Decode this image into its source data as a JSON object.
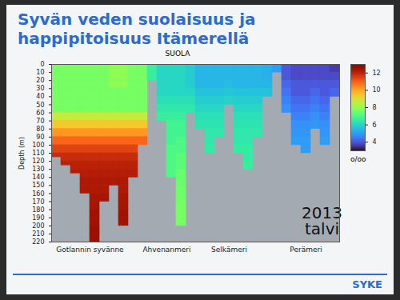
{
  "chart_data": {
    "type": "heatmap",
    "slide_title": "Syvän veden suolaisuus ja happipitoisuus Itämerellä",
    "title": "SUOLA",
    "y_label": "Depth (m)",
    "annotation": "2013\ntalvi",
    "logo": "SYKE",
    "xlim": [
      0,
      30
    ],
    "xticks": [
      {
        "value": 4,
        "label": "Gotlannin syvänne"
      },
      {
        "value": 12,
        "label": "Ahvenanmeri"
      },
      {
        "value": 18.5,
        "label": "Selkämeri"
      },
      {
        "value": 26.5,
        "label": "Perämeri"
      }
    ],
    "ylim": [
      0,
      220
    ],
    "yticks": [
      0,
      10,
      20,
      30,
      40,
      50,
      60,
      70,
      80,
      90,
      100,
      110,
      120,
      130,
      140,
      150,
      160,
      170,
      180,
      190,
      200,
      210,
      220
    ],
    "layer_tops": [
      0,
      10,
      20,
      30,
      40,
      50,
      60,
      70,
      80,
      90,
      100,
      110,
      120,
      130,
      140,
      150,
      160,
      170,
      180,
      190,
      200,
      210
    ],
    "columns": {
      "x": [
        0,
        1,
        2,
        3,
        4,
        5,
        6,
        7,
        8,
        9,
        10,
        11,
        12,
        13,
        14,
        15,
        16,
        17,
        18,
        19,
        20,
        21,
        22,
        23,
        24,
        25,
        26,
        27,
        28,
        29
      ],
      "bottom": [
        115,
        125,
        135,
        160,
        220,
        170,
        150,
        200,
        140,
        100,
        20,
        70,
        140,
        200,
        60,
        80,
        110,
        90,
        50,
        110,
        130,
        90,
        40,
        10,
        60,
        100,
        110,
        80,
        100,
        40
      ],
      "salinity": [
        [
          7.6,
          7.6,
          7.6,
          7.6,
          7.6,
          7.6,
          8.6,
          9.4,
          10.2,
          10.9,
          11.4,
          11.8
        ],
        [
          7.6,
          7.6,
          7.6,
          7.6,
          7.6,
          7.6,
          8.6,
          9.4,
          10.2,
          10.9,
          11.4,
          11.8,
          12.0
        ],
        [
          7.6,
          7.6,
          7.6,
          7.6,
          7.6,
          7.6,
          8.6,
          9.4,
          10.2,
          10.9,
          11.4,
          11.8,
          12.0,
          12.1
        ],
        [
          7.6,
          7.6,
          7.6,
          7.6,
          7.6,
          7.6,
          8.6,
          9.4,
          10.2,
          10.9,
          11.4,
          11.8,
          12.0,
          12.1,
          12.2,
          12.2
        ],
        [
          7.6,
          7.6,
          7.6,
          7.6,
          7.6,
          7.6,
          8.6,
          9.4,
          10.2,
          10.9,
          11.4,
          11.8,
          12.0,
          12.1,
          12.2,
          12.2,
          12.3,
          12.3,
          12.4,
          12.4,
          12.5,
          12.5
        ],
        [
          7.6,
          7.6,
          7.6,
          7.6,
          7.6,
          7.6,
          8.6,
          9.4,
          10.2,
          10.9,
          11.4,
          11.8,
          12.0,
          12.1,
          12.2,
          12.2,
          12.3
        ],
        [
          7.9,
          7.9,
          7.9,
          7.6,
          7.6,
          7.6,
          8.6,
          9.4,
          10.2,
          10.9,
          11.4,
          11.8,
          12.0,
          12.1,
          12.2
        ],
        [
          7.9,
          7.9,
          7.9,
          7.6,
          7.6,
          7.6,
          8.6,
          9.4,
          10.2,
          10.9,
          11.4,
          11.8,
          12.0,
          12.1,
          12.2,
          12.2,
          12.3,
          12.3,
          12.4,
          12.4
        ],
        [
          7.6,
          7.6,
          7.6,
          7.6,
          7.6,
          7.6,
          8.6,
          9.4,
          10.2,
          10.9,
          11.4,
          11.8,
          12.0,
          12.1
        ],
        [
          7.6,
          7.6,
          7.6,
          7.6,
          7.6,
          7.6,
          8.6,
          9.4,
          10.2,
          10.9
        ],
        [
          6.6,
          6.6
        ],
        [
          6.0,
          6.0,
          6.0,
          6.0,
          6.2,
          6.4,
          6.6
        ],
        [
          6.0,
          6.0,
          6.0,
          6.0,
          6.2,
          6.4,
          6.6,
          6.8,
          6.8,
          6.8,
          7.0,
          7.0,
          7.0,
          7.0
        ],
        [
          6.0,
          6.0,
          6.0,
          6.0,
          6.2,
          6.4,
          6.6,
          6.8,
          6.8,
          7.0,
          7.0,
          7.2,
          7.2,
          7.4,
          7.4,
          7.5,
          7.5,
          7.6,
          7.6,
          7.6
        ],
        [
          5.8,
          5.8,
          5.8,
          6.0,
          6.2,
          6.4
        ],
        [
          5.4,
          5.4,
          5.4,
          5.6,
          5.8,
          6.0,
          6.2,
          6.3
        ],
        [
          5.4,
          5.4,
          5.4,
          5.6,
          5.8,
          6.0,
          6.2,
          6.3,
          6.4,
          6.4,
          6.5
        ],
        [
          5.4,
          5.4,
          5.4,
          5.6,
          5.8,
          6.0,
          6.2,
          6.3,
          6.4
        ],
        [
          5.4,
          5.4,
          5.5,
          5.7,
          5.9
        ],
        [
          5.4,
          5.4,
          5.4,
          5.6,
          5.8,
          6.0,
          6.2,
          6.3,
          6.4,
          6.4,
          6.5
        ],
        [
          5.4,
          5.4,
          5.4,
          5.6,
          5.8,
          6.0,
          6.2,
          6.3,
          6.4,
          6.4,
          6.5,
          6.5,
          6.6
        ],
        [
          5.4,
          5.4,
          5.4,
          5.6,
          5.8,
          6.0,
          6.2,
          6.3,
          6.4
        ],
        [
          5.3,
          5.3,
          5.4,
          5.6
        ],
        [
          5.0
        ],
        [
          4.0,
          4.0,
          4.2,
          4.4,
          4.6,
          4.8
        ],
        [
          3.8,
          3.8,
          4.0,
          4.0,
          4.2,
          4.4,
          4.6,
          4.8,
          4.9,
          5.0
        ],
        [
          3.8,
          3.8,
          4.0,
          4.0,
          4.2,
          4.4,
          4.6,
          4.8,
          4.9,
          5.0,
          5.0
        ],
        [
          3.8,
          3.8,
          4.0,
          4.2,
          4.4,
          4.6,
          4.8,
          4.9
        ],
        [
          3.8,
          3.8,
          4.0,
          4.0,
          4.2,
          4.4,
          4.6,
          4.8,
          4.9,
          5.0
        ],
        [
          3.6,
          3.8,
          4.0,
          4.2
        ]
      ]
    },
    "color_bar": {
      "range": [
        3,
        13
      ],
      "ticks": [
        4,
        6,
        8,
        10,
        12
      ],
      "label": "o/oo"
    }
  }
}
